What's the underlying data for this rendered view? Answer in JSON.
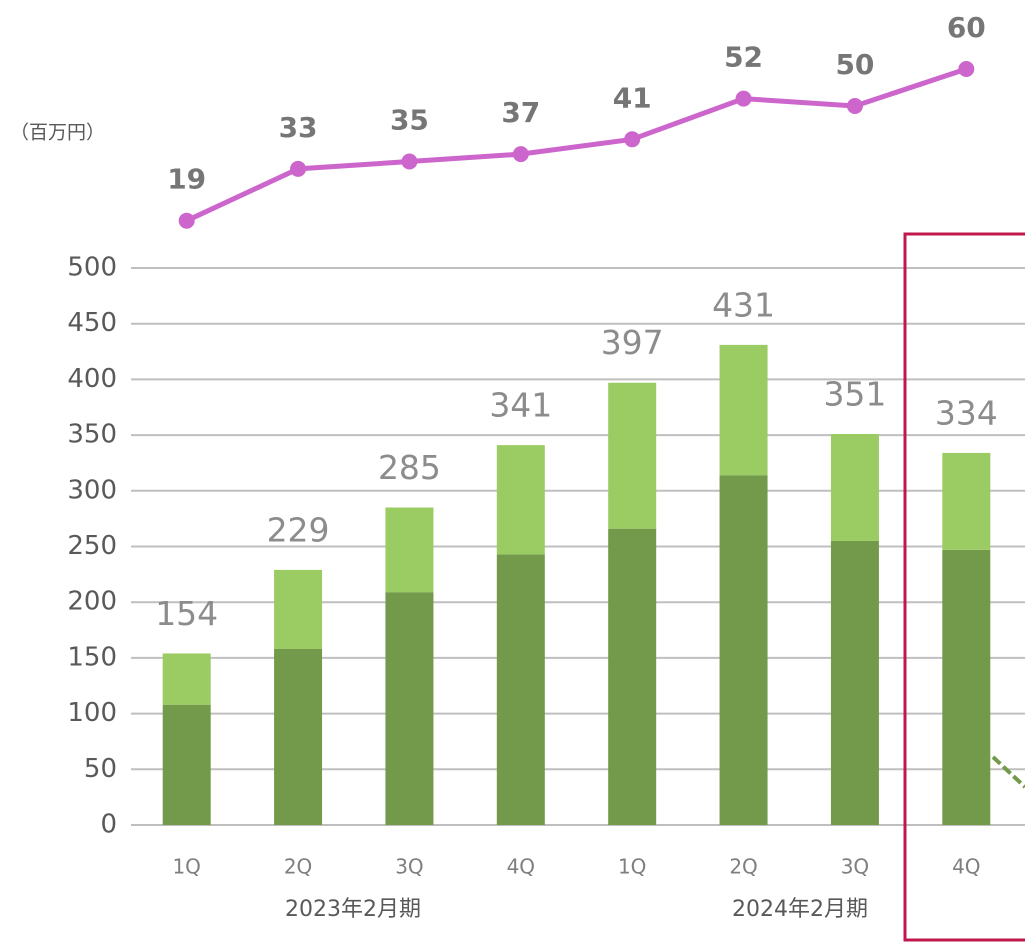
{
  "chart_data": {
    "type": "bar",
    "stacked": true,
    "unit_label": "（百万円）",
    "categories": [
      "1Q",
      "2Q",
      "3Q",
      "4Q",
      "1Q",
      "2Q",
      "3Q",
      "4Q"
    ],
    "groups": [
      "2023年2月期",
      "2024年2月期"
    ],
    "series": [
      {
        "name": "lower",
        "color": "#739a4b",
        "values": [
          108,
          158,
          209,
          243,
          266,
          314,
          255,
          247
        ]
      },
      {
        "name": "upper",
        "color": "#9bcb63",
        "values": [
          46,
          71,
          76,
          98,
          131,
          117,
          96,
          87
        ]
      },
      {
        "name": "line",
        "type": "line",
        "axis": "y2",
        "color": "#cc66cc",
        "values": [
          19,
          33,
          35,
          37,
          41,
          52,
          50,
          60
        ]
      }
    ],
    "totals": [
      154,
      229,
      285,
      341,
      397,
      431,
      351,
      334
    ],
    "ylim": [
      0,
      500
    ],
    "yticks": [
      0,
      50,
      100,
      150,
      200,
      250,
      300,
      350,
      400,
      450,
      500
    ],
    "y2lim": [
      0,
      60
    ],
    "grid": true
  }
}
